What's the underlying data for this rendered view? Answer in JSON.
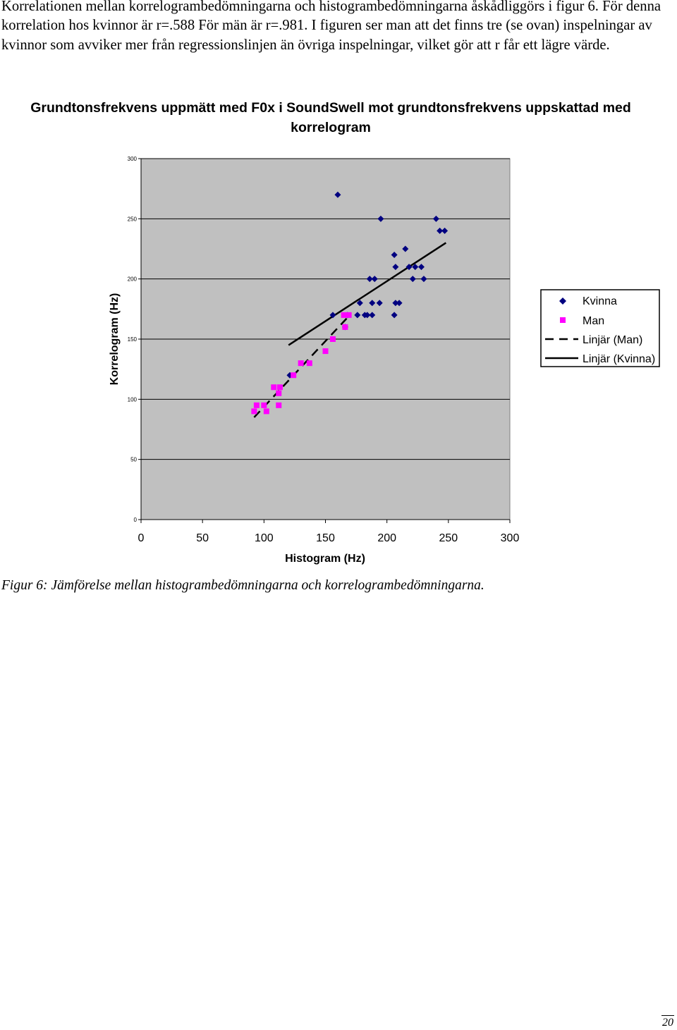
{
  "paragraph": "Korrelationen mellan korrelogrambedömningarna och histogrambedömningarna åskådliggörs i figur 6. För denna korrelation hos kvinnor är r=.588 För män är r=.981. I figuren ser man att det finns tre (se ovan) inspelningar av kvinnor som avviker mer från regressionslinjen än övriga inspelningar, vilket gör att r får ett lägre värde.",
  "caption": "Figur 6: Jämförelse mellan histogrambedömningarna och korrelogrambedömningarna.",
  "page_number": "20",
  "chart_data": {
    "type": "scatter",
    "title_line1": "Grundtonsfrekvens uppmätt med F0x i SoundSwell mot grundtonsfrekvens uppskattad med",
    "title_line2": "korrelogram",
    "xlabel": "Histogram (Hz)",
    "ylabel": "Korrelogram (Hz)",
    "xlim": [
      0,
      300
    ],
    "ylim": [
      0,
      300
    ],
    "xticks": [
      "0",
      "50",
      "100",
      "150",
      "200",
      "250",
      "300"
    ],
    "yticks": [
      "0",
      "50",
      "100",
      "150",
      "200",
      "250",
      "300"
    ],
    "grid": "horizontal",
    "legend_position": "right",
    "plot_background": "#c0c0c0",
    "series": [
      {
        "name": "Kvinna",
        "marker": "diamond",
        "color": "#000080",
        "points": [
          [
            160,
            270
          ],
          [
            195,
            250
          ],
          [
            240,
            250
          ],
          [
            243,
            240
          ],
          [
            247,
            240
          ],
          [
            206,
            220
          ],
          [
            215,
            225
          ],
          [
            207,
            210
          ],
          [
            218,
            210
          ],
          [
            223,
            210
          ],
          [
            228,
            210
          ],
          [
            186,
            200
          ],
          [
            190,
            200
          ],
          [
            221,
            200
          ],
          [
            230,
            200
          ],
          [
            156,
            170
          ],
          [
            178,
            180
          ],
          [
            188,
            180
          ],
          [
            194,
            180
          ],
          [
            207,
            180
          ],
          [
            210,
            180
          ],
          [
            176,
            170
          ],
          [
            182,
            170
          ],
          [
            184,
            170
          ],
          [
            188,
            170
          ],
          [
            206,
            170
          ],
          [
            121,
            120
          ],
          [
            166,
            160
          ],
          [
            168,
            170
          ]
        ]
      },
      {
        "name": "Man",
        "marker": "square",
        "color": "#ff00ff",
        "points": [
          [
            92,
            90
          ],
          [
            94,
            95
          ],
          [
            100,
            95
          ],
          [
            102,
            90
          ],
          [
            108,
            110
          ],
          [
            112,
            95
          ],
          [
            112,
            105
          ],
          [
            113,
            110
          ],
          [
            124,
            120
          ],
          [
            130,
            130
          ],
          [
            137,
            130
          ],
          [
            150,
            140
          ],
          [
            156,
            150
          ],
          [
            165,
            170
          ],
          [
            169,
            170
          ],
          [
            166,
            160
          ]
        ]
      }
    ],
    "trendlines": [
      {
        "name": "Linjär (Man)",
        "style": "dashed",
        "color": "#000000",
        "x": [
          92,
          168
        ],
        "y": [
          85,
          168
        ]
      },
      {
        "name": "Linjär (Kvinna)",
        "style": "solid",
        "color": "#000000",
        "x": [
          120,
          248
        ],
        "y": [
          145,
          230
        ]
      }
    ]
  }
}
